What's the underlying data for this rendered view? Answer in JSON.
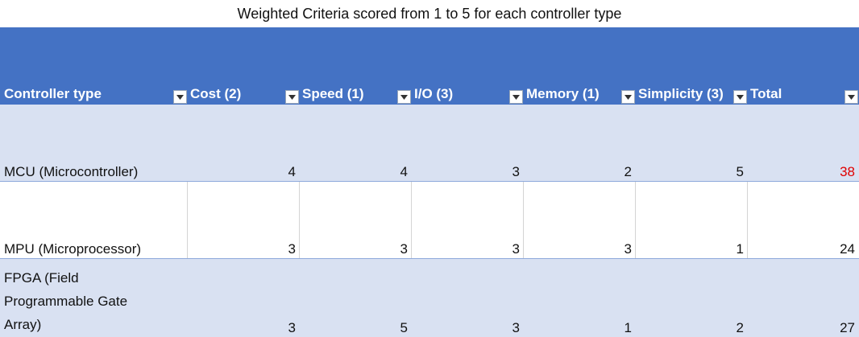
{
  "title": "Weighted Criteria scored from 1 to 5 for each controller type",
  "headers": [
    "Controller type",
    "Cost (2)",
    "Speed (1)",
    "I/O (3)",
    "Memory (1)",
    "Simplicity (3)",
    "Total"
  ],
  "rows": [
    {
      "name": "MCU (Microcontroller)",
      "cost": "4",
      "speed": "4",
      "io": "3",
      "memory": "2",
      "simplicity": "5",
      "total": "38"
    },
    {
      "name": "MPU (Microprocessor)",
      "cost": "3",
      "speed": "3",
      "io": "3",
      "memory": "3",
      "simplicity": "1",
      "total": "24"
    },
    {
      "name": "FPGA (Field Programmable Gate Array)",
      "cost": "3",
      "speed": "5",
      "io": "3",
      "memory": "1",
      "simplicity": "2",
      "total": "27"
    }
  ],
  "colors": {
    "header_bg": "#4472c4",
    "band_bg": "#d9e1f2",
    "highlight_total": "#e00000"
  }
}
